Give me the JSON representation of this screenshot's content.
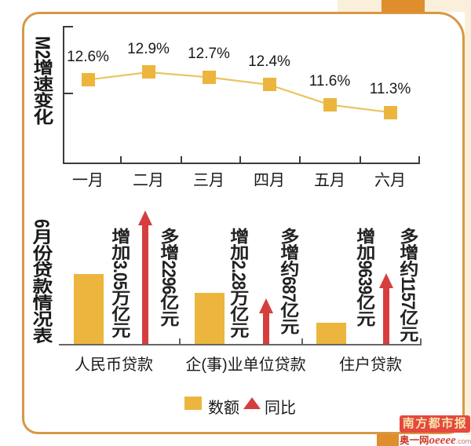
{
  "chart_data": [
    {
      "type": "line",
      "title": "M2增速变化",
      "categories": [
        "一月",
        "二月",
        "三月",
        "四月",
        "五月",
        "六月"
      ],
      "values": [
        12.6,
        12.9,
        12.7,
        12.4,
        11.6,
        11.3
      ],
      "labels": [
        "12.6%",
        "12.9%",
        "12.7%",
        "12.4%",
        "11.6%",
        "11.3%"
      ],
      "marker_color": "#ecb53d",
      "line_color": "#eac45e"
    },
    {
      "type": "bar",
      "title": "6月份贷款情况表",
      "groups": [
        {
          "category": "人民币贷款",
          "amount_label": "增加3.05万亿元",
          "yoy_label": "多增2296亿元",
          "amount_yi": 30500,
          "yoy_yi": 2296
        },
        {
          "category": "企(事)业单位贷款",
          "amount_label": "增加2.28万亿元",
          "yoy_label": "多增约687亿元",
          "amount_yi": 22800,
          "yoy_yi": 687
        },
        {
          "category": "住户贷款",
          "amount_label": "增加9639亿元",
          "yoy_label": "多增约1157亿元",
          "amount_yi": 9639,
          "yoy_yi": 1157
        }
      ],
      "bar_color": "#ecb53d",
      "arrow_color": "#d63e3e",
      "legend": [
        {
          "label": "数额",
          "swatch": "square",
          "color": "#ecb53d"
        },
        {
          "label": "同比",
          "swatch": "triangle",
          "color": "#d63e3e"
        }
      ]
    }
  ],
  "branding": {
    "newspaper": "南方都市报",
    "site": "奥一网",
    "site_latin": "oeeee",
    "site_tld": ".com"
  }
}
